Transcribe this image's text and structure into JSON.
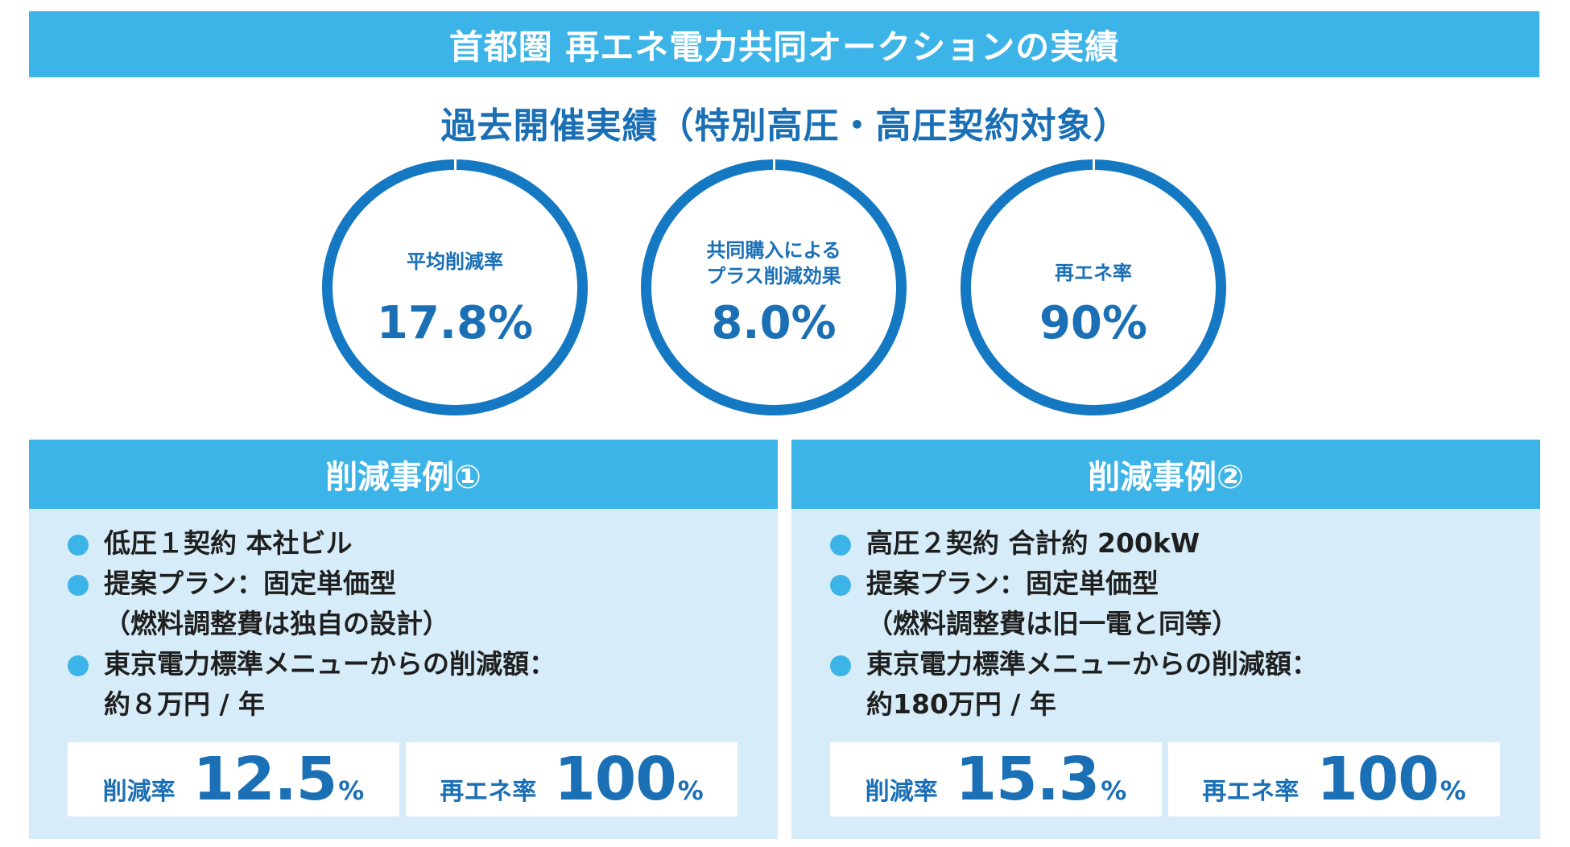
{
  "header": {
    "title": "首都圏 再エネ電力共同オークションの実績"
  },
  "subtitle": "過去開催実績（特別高圧・高圧契約対象）",
  "metrics": [
    {
      "label": "平均削減率",
      "value": "17.8%"
    },
    {
      "label": "共同購入による\nプラス削減効果",
      "value": "8.0%"
    },
    {
      "label": "再エネ率",
      "value": "90%"
    }
  ],
  "cases": [
    {
      "title": "削減事例①",
      "items": [
        [
          "低圧１契約 本社ビル"
        ],
        [
          "提案プラン：固定単価型",
          "（燃料調整費は独自の設計）"
        ],
        [
          "東京電力標準メニューからの削減額：",
          "約８万円 / 年"
        ]
      ],
      "reduction": {
        "label": "削減率",
        "value": "12.5",
        "unit": "%"
      },
      "renewable": {
        "label": "再エネ率",
        "value": "100",
        "unit": "%"
      }
    },
    {
      "title": "削減事例②",
      "items": [
        [
          "高圧２契約 合計約 200kW"
        ],
        [
          "提案プラン：固定単価型",
          "（燃料調整費は旧一電と同等）"
        ],
        [
          "東京電力標準メニューからの削減額：",
          "約180万円 / 年"
        ]
      ],
      "reduction": {
        "label": "削減率",
        "value": "15.3",
        "unit": "%"
      },
      "renewable": {
        "label": "再エネ率",
        "value": "100",
        "unit": "%"
      }
    }
  ],
  "colors": {
    "accent": "#3db4e8",
    "ring": "#1478c2",
    "text_blue": "#1a6fb5",
    "card_bg": "#d6ecf8"
  }
}
